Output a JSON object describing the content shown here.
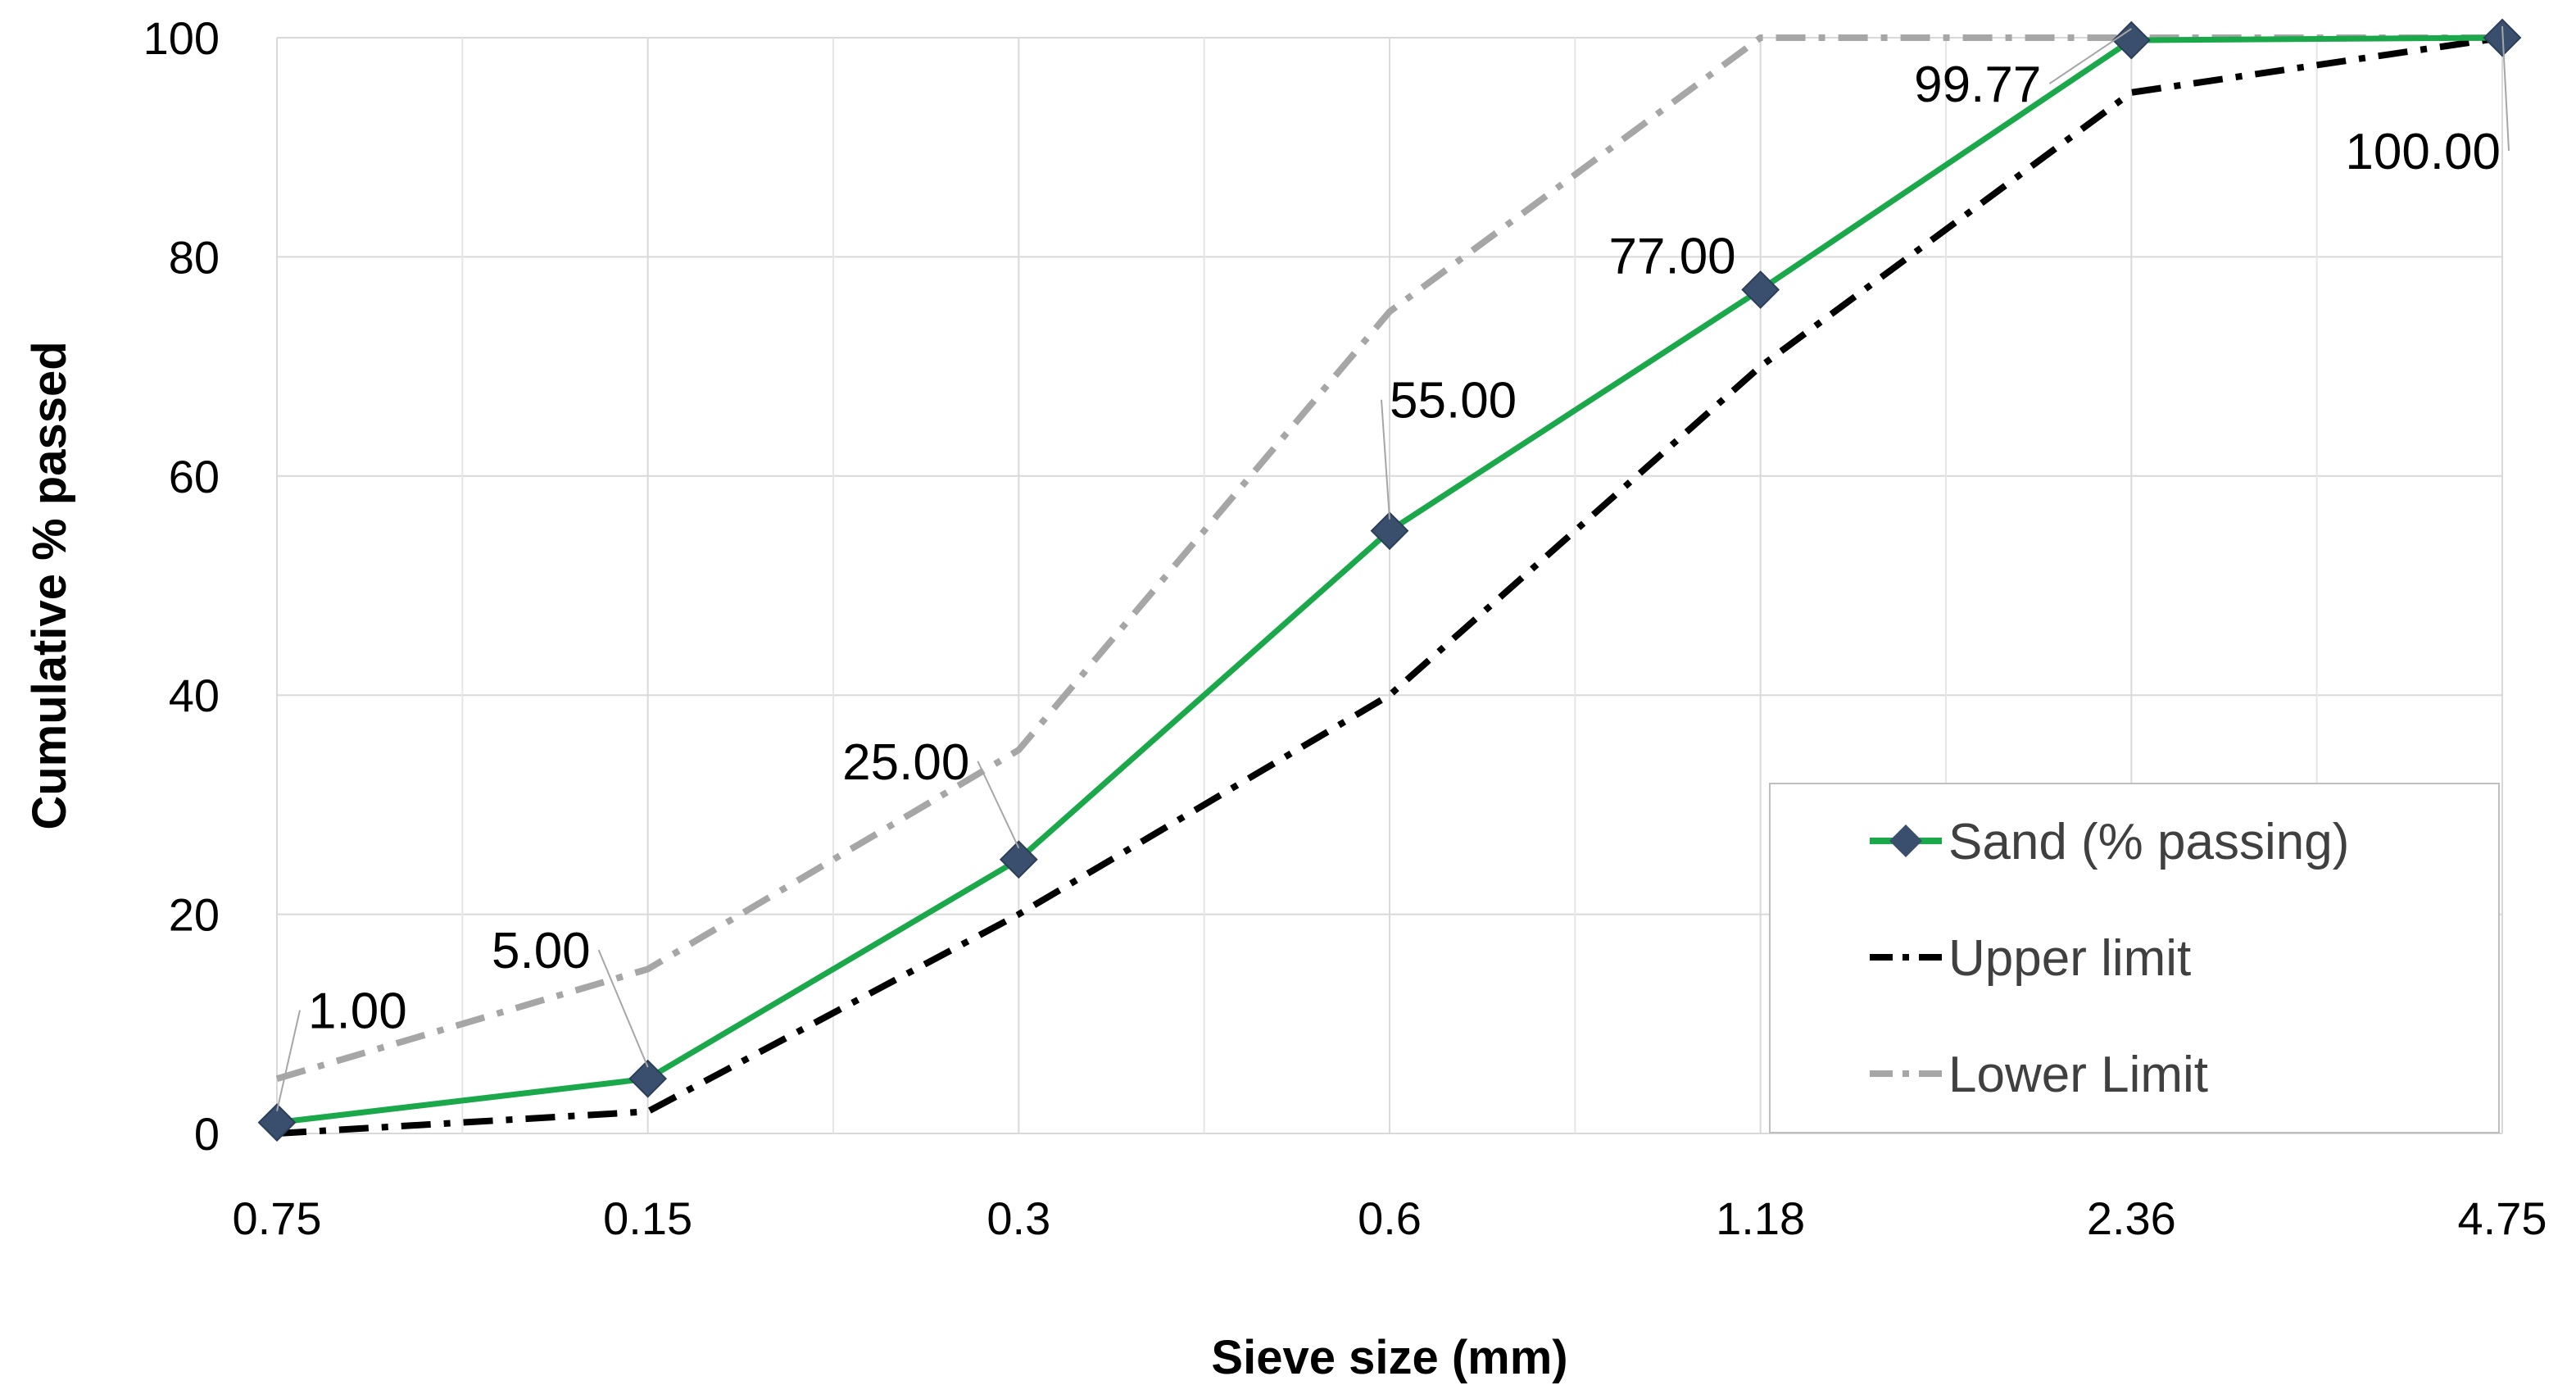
{
  "chart_data": {
    "type": "line",
    "title": "",
    "xlabel": "Sieve size (mm)",
    "ylabel": "Cumulative % passed",
    "categories": [
      "0.75",
      "0.15",
      "0.3",
      "0.6",
      "1.18",
      "2.36",
      "4.75"
    ],
    "ylim": [
      0,
      100
    ],
    "yticks": [
      0,
      20,
      40,
      60,
      80,
      100
    ],
    "grid": true,
    "legend_position": "bottom-right",
    "series": [
      {
        "name": "Sand (% passing)",
        "values": [
          1.0,
          5.0,
          25.0,
          55.0,
          77.0,
          99.77,
          100.0
        ],
        "data_labels": [
          "1.00",
          "5.00",
          "25.00",
          "55.00",
          "77.00",
          "99.77",
          "100.00"
        ],
        "color": "#1aa84a",
        "marker": "diamond",
        "marker_color": "#3a4f6e",
        "line_style": "solid"
      },
      {
        "name": "Upper limit",
        "values": [
          0,
          2,
          20,
          40,
          70,
          95,
          100
        ],
        "color": "#000000",
        "line_style": "dash-dot"
      },
      {
        "name": "Lower Limit",
        "values": [
          5,
          15,
          35,
          75,
          100,
          100,
          100
        ],
        "color": "#a6a6a6",
        "line_style": "dash-dot"
      }
    ]
  }
}
